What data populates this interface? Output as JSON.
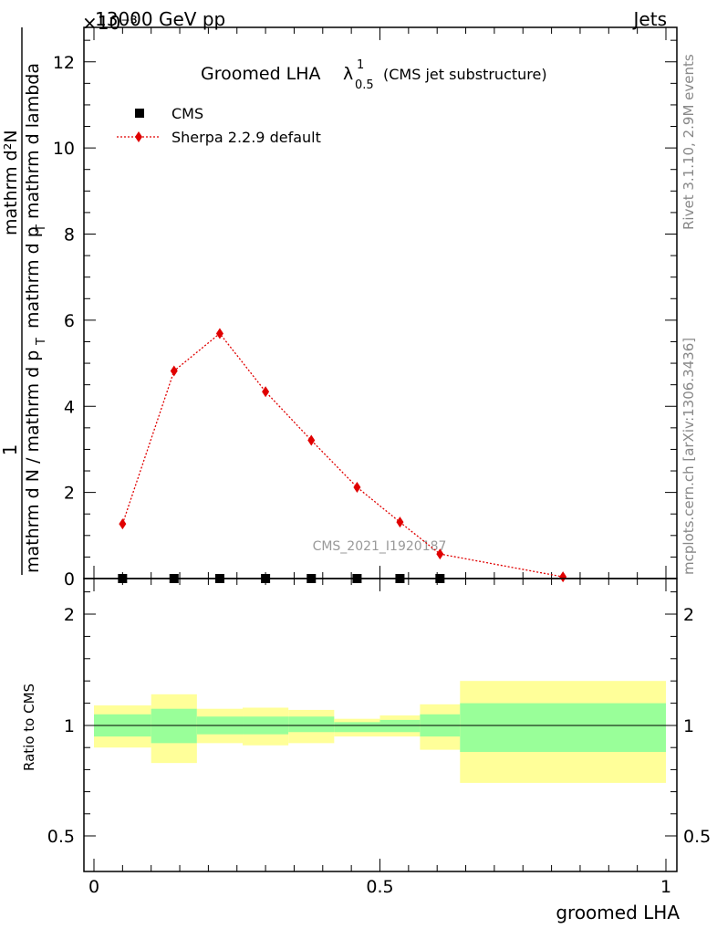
{
  "header": {
    "energy": "13000 GeV pp",
    "category": "Jets",
    "scale_factor": "×10⁻³"
  },
  "title": {
    "main": "Groomed LHA",
    "lambda": "λ",
    "sup": "1",
    "sub": "0.5",
    "suffix": "(CMS jet substructure)"
  },
  "side_labels": {
    "rivet": "Rivet 3.1.10,  2.9M events",
    "mcplots": "mcplots.cern.ch [arXiv:1306.3436]"
  },
  "watermark": "CMS_2021_I1920187",
  "ylabel_top": {
    "numerator": "mathrm d²N",
    "denominator_part1": "mathrm d p",
    "denominator_part2": "mathrm d lambda",
    "prefix_numerator": "1",
    "prefix_denominator": "mathrm d N / mathrm d p",
    "sub_T": "T"
  },
  "ylabel_ratio": "Ratio to CMS",
  "xlabel": "groomed LHA",
  "chart_data": [
    {
      "type": "line",
      "panel": "main",
      "ylim": [
        0,
        12.8
      ],
      "xlim": [
        0,
        1
      ],
      "y_ticks": [
        0,
        2,
        4,
        6,
        8,
        10,
        12
      ],
      "y_tick_labels": [
        "0",
        "2",
        "4",
        "6",
        "8",
        "10",
        "12"
      ],
      "y_scale_note": "×10⁻³",
      "series": [
        {
          "name": "CMS",
          "marker": "square",
          "color": "#000000",
          "x": [
            0.05,
            0.14,
            0.22,
            0.3,
            0.38,
            0.46,
            0.535,
            0.605
          ],
          "values": [
            0,
            0,
            0,
            0,
            0,
            0,
            0,
            0
          ]
        },
        {
          "name": "Sherpa 2.2.9 default",
          "marker": "diamond",
          "color": "#e00000",
          "linestyle": "dotted",
          "x": [
            0.05,
            0.14,
            0.22,
            0.3,
            0.38,
            0.46,
            0.535,
            0.605,
            0.82
          ],
          "values": [
            1.27,
            4.82,
            5.69,
            4.34,
            3.21,
            2.12,
            1.31,
            0.57,
            0.04
          ]
        }
      ],
      "legend_position": "top-left"
    },
    {
      "type": "area",
      "panel": "ratio",
      "ylim": [
        0.4,
        2.35
      ],
      "xlim": [
        0,
        1
      ],
      "x_ticks": [
        0,
        0.5,
        1
      ],
      "x_tick_labels": [
        "0",
        "0.5",
        "1"
      ],
      "y_ticks": [
        0.5,
        1,
        2
      ],
      "y_tick_labels": [
        "0.5",
        "1",
        "2"
      ],
      "reference_line": 1,
      "bands": [
        {
          "x0": 0.0,
          "x1": 0.1,
          "yellow": [
            0.9,
            1.18
          ],
          "green": [
            0.95,
            1.1
          ]
        },
        {
          "x0": 0.1,
          "x1": 0.18,
          "yellow": [
            0.83,
            1.28
          ],
          "green": [
            0.92,
            1.15
          ]
        },
        {
          "x0": 0.18,
          "x1": 0.26,
          "yellow": [
            0.92,
            1.15
          ],
          "green": [
            0.96,
            1.08
          ]
        },
        {
          "x0": 0.26,
          "x1": 0.34,
          "yellow": [
            0.91,
            1.16
          ],
          "green": [
            0.96,
            1.08
          ]
        },
        {
          "x0": 0.34,
          "x1": 0.42,
          "yellow": [
            0.92,
            1.14
          ],
          "green": [
            0.97,
            1.08
          ]
        },
        {
          "x0": 0.42,
          "x1": 0.5,
          "yellow": [
            0.95,
            1.06
          ],
          "green": [
            0.97,
            1.03
          ]
        },
        {
          "x0": 0.5,
          "x1": 0.57,
          "yellow": [
            0.95,
            1.09
          ],
          "green": [
            0.97,
            1.05
          ]
        },
        {
          "x0": 0.57,
          "x1": 0.64,
          "yellow": [
            0.89,
            1.19
          ],
          "green": [
            0.95,
            1.1
          ]
        },
        {
          "x0": 0.64,
          "x1": 1.0,
          "yellow": [
            0.74,
            1.4
          ],
          "green": [
            0.88,
            1.2
          ]
        }
      ],
      "colors": {
        "yellow": "#ffff99",
        "green": "#99ff99"
      }
    }
  ]
}
